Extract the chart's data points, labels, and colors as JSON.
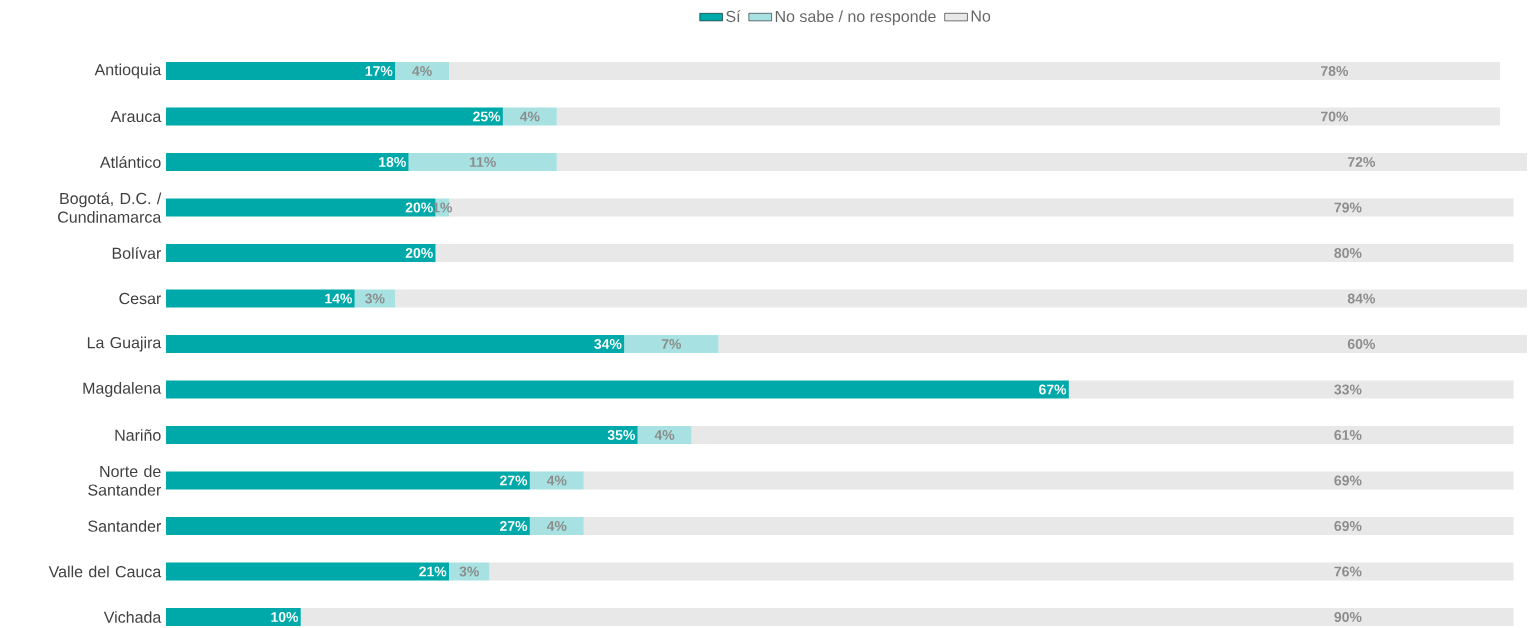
{
  "chart_data": {
    "type": "bar",
    "orientation": "horizontal",
    "stacked": true,
    "legend": "top",
    "tick_labels": "y",
    "xlim": [
      0,
      101
    ],
    "categories": [
      "Antioquia",
      "Arauca",
      "Atlántico",
      "Bogotá, D.C. / Cundinamarca",
      "Bolívar",
      "Cesar",
      "La Guajira",
      "Magdalena",
      "Nariño",
      "Norte de Santander",
      "Santander",
      "Valle del Cauca",
      "Vichada"
    ],
    "series": [
      {
        "name": "Sí",
        "color": "#00a9a9",
        "values": [
          17,
          25,
          18,
          20,
          20,
          14,
          34,
          67,
          35,
          27,
          27,
          21,
          10
        ],
        "value_labels": [
          "17%",
          "25%",
          "18%",
          "20%",
          "20%",
          "14%",
          "34%",
          "67%",
          "35%",
          "27%",
          "27%",
          "21%",
          "10%"
        ]
      },
      {
        "name": "No sabe / no responde",
        "color": "#a8e1e1",
        "values": [
          4,
          4,
          11,
          1,
          0,
          3,
          7,
          0,
          4,
          4,
          4,
          3,
          0
        ],
        "value_labels": [
          "4%",
          "4%",
          "11%",
          "1%",
          null,
          "3%",
          "7%",
          null,
          "4%",
          "4%",
          "4%",
          "3%",
          null
        ]
      },
      {
        "name": "No",
        "color": "#e8e8e8",
        "values": [
          78,
          70,
          72,
          79,
          80,
          84,
          60,
          33,
          61,
          69,
          69,
          76,
          90
        ],
        "value_labels": [
          "78%",
          "70%",
          "72%",
          "79%",
          "80%",
          "84%",
          "60%",
          "33%",
          "61%",
          "69%",
          "69%",
          "76%",
          "90%"
        ]
      }
    ]
  }
}
